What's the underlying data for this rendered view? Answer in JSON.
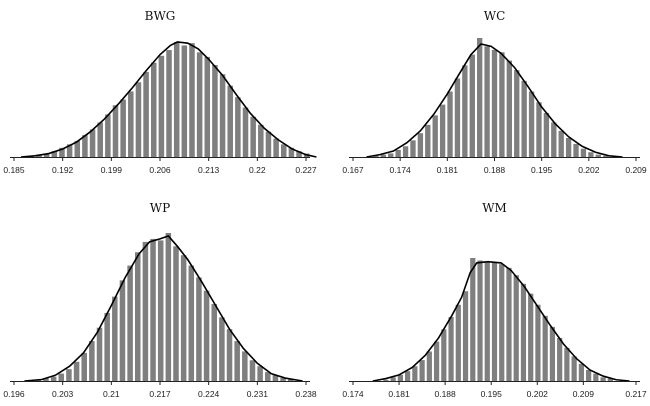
{
  "chart_data": [
    {
      "type": "bar",
      "title": "BWG",
      "xlim": [
        0.185,
        0.227
      ],
      "xticks": [
        "0.185",
        "0.192",
        "0.199",
        "0.206",
        "0.213",
        "0.22",
        "0.227"
      ],
      "bin_width": 0.0011,
      "bins": [
        {
          "x": 0.1875,
          "y": 1
        },
        {
          "x": 0.1886,
          "y": 2
        },
        {
          "x": 0.1897,
          "y": 3
        },
        {
          "x": 0.1908,
          "y": 5
        },
        {
          "x": 0.1919,
          "y": 8
        },
        {
          "x": 0.193,
          "y": 11
        },
        {
          "x": 0.1941,
          "y": 14
        },
        {
          "x": 0.1952,
          "y": 19
        },
        {
          "x": 0.1963,
          "y": 24
        },
        {
          "x": 0.1974,
          "y": 30
        },
        {
          "x": 0.1985,
          "y": 37
        },
        {
          "x": 0.1996,
          "y": 45
        },
        {
          "x": 0.2007,
          "y": 50
        },
        {
          "x": 0.2018,
          "y": 57
        },
        {
          "x": 0.2029,
          "y": 65
        },
        {
          "x": 0.204,
          "y": 74
        },
        {
          "x": 0.2051,
          "y": 82
        },
        {
          "x": 0.2062,
          "y": 88
        },
        {
          "x": 0.2073,
          "y": 93
        },
        {
          "x": 0.2084,
          "y": 100
        },
        {
          "x": 0.2095,
          "y": 97
        },
        {
          "x": 0.2106,
          "y": 99
        },
        {
          "x": 0.2117,
          "y": 91
        },
        {
          "x": 0.2128,
          "y": 87
        },
        {
          "x": 0.2139,
          "y": 80
        },
        {
          "x": 0.215,
          "y": 72
        },
        {
          "x": 0.2161,
          "y": 62
        },
        {
          "x": 0.2172,
          "y": 52
        },
        {
          "x": 0.2183,
          "y": 43
        },
        {
          "x": 0.2194,
          "y": 35
        },
        {
          "x": 0.2205,
          "y": 28
        },
        {
          "x": 0.2216,
          "y": 22
        },
        {
          "x": 0.2227,
          "y": 16
        },
        {
          "x": 0.2238,
          "y": 11
        },
        {
          "x": 0.2249,
          "y": 8
        },
        {
          "x": 0.226,
          "y": 5
        },
        {
          "x": 0.2271,
          "y": 3
        }
      ],
      "curve": [
        {
          "x": 0.186,
          "y": 0
        },
        {
          "x": 0.188,
          "y": 1
        },
        {
          "x": 0.19,
          "y": 3
        },
        {
          "x": 0.192,
          "y": 7
        },
        {
          "x": 0.194,
          "y": 13
        },
        {
          "x": 0.196,
          "y": 22
        },
        {
          "x": 0.198,
          "y": 33
        },
        {
          "x": 0.2,
          "y": 46
        },
        {
          "x": 0.202,
          "y": 60
        },
        {
          "x": 0.204,
          "y": 75
        },
        {
          "x": 0.206,
          "y": 89
        },
        {
          "x": 0.2075,
          "y": 97
        },
        {
          "x": 0.2085,
          "y": 100
        },
        {
          "x": 0.21,
          "y": 99
        },
        {
          "x": 0.2115,
          "y": 94
        },
        {
          "x": 0.213,
          "y": 85
        },
        {
          "x": 0.215,
          "y": 71
        },
        {
          "x": 0.217,
          "y": 54
        },
        {
          "x": 0.219,
          "y": 38
        },
        {
          "x": 0.221,
          "y": 25
        },
        {
          "x": 0.223,
          "y": 15
        },
        {
          "x": 0.225,
          "y": 7
        },
        {
          "x": 0.227,
          "y": 2
        },
        {
          "x": 0.2285,
          "y": 0
        }
      ]
    },
    {
      "type": "bar",
      "title": "WC",
      "xlim": [
        0.167,
        0.209
      ],
      "xticks": [
        "0.167",
        "0.174",
        "0.181",
        "0.188",
        "0.195",
        "0.202",
        "0.209"
      ],
      "bin_width": 0.0011,
      "bins": [
        {
          "x": 0.1704,
          "y": 1
        },
        {
          "x": 0.1715,
          "y": 2
        },
        {
          "x": 0.1726,
          "y": 3
        },
        {
          "x": 0.1737,
          "y": 6
        },
        {
          "x": 0.1748,
          "y": 9
        },
        {
          "x": 0.1759,
          "y": 14
        },
        {
          "x": 0.177,
          "y": 20
        },
        {
          "x": 0.1781,
          "y": 27
        },
        {
          "x": 0.1792,
          "y": 35
        },
        {
          "x": 0.1803,
          "y": 44
        },
        {
          "x": 0.1814,
          "y": 55
        },
        {
          "x": 0.1825,
          "y": 66
        },
        {
          "x": 0.1836,
          "y": 77
        },
        {
          "x": 0.1847,
          "y": 86
        },
        {
          "x": 0.1858,
          "y": 100
        },
        {
          "x": 0.1869,
          "y": 93
        },
        {
          "x": 0.188,
          "y": 90
        },
        {
          "x": 0.1891,
          "y": 88
        },
        {
          "x": 0.1902,
          "y": 81
        },
        {
          "x": 0.1913,
          "y": 73
        },
        {
          "x": 0.1924,
          "y": 64
        },
        {
          "x": 0.1935,
          "y": 55
        },
        {
          "x": 0.1946,
          "y": 46
        },
        {
          "x": 0.1957,
          "y": 37
        },
        {
          "x": 0.1968,
          "y": 29
        },
        {
          "x": 0.1979,
          "y": 22
        },
        {
          "x": 0.199,
          "y": 16
        },
        {
          "x": 0.2001,
          "y": 11
        },
        {
          "x": 0.2012,
          "y": 7
        },
        {
          "x": 0.2023,
          "y": 4
        },
        {
          "x": 0.2034,
          "y": 2
        },
        {
          "x": 0.2045,
          "y": 1
        }
      ],
      "curve": [
        {
          "x": 0.169,
          "y": 0
        },
        {
          "x": 0.171,
          "y": 2
        },
        {
          "x": 0.173,
          "y": 5
        },
        {
          "x": 0.175,
          "y": 12
        },
        {
          "x": 0.177,
          "y": 22
        },
        {
          "x": 0.179,
          "y": 36
        },
        {
          "x": 0.181,
          "y": 53
        },
        {
          "x": 0.183,
          "y": 72
        },
        {
          "x": 0.1845,
          "y": 86
        },
        {
          "x": 0.186,
          "y": 95
        },
        {
          "x": 0.1875,
          "y": 93
        },
        {
          "x": 0.189,
          "y": 87
        },
        {
          "x": 0.191,
          "y": 75
        },
        {
          "x": 0.193,
          "y": 59
        },
        {
          "x": 0.195,
          "y": 42
        },
        {
          "x": 0.197,
          "y": 28
        },
        {
          "x": 0.199,
          "y": 17
        },
        {
          "x": 0.201,
          "y": 9
        },
        {
          "x": 0.203,
          "y": 4
        },
        {
          "x": 0.205,
          "y": 1
        },
        {
          "x": 0.207,
          "y": 0
        }
      ]
    },
    {
      "type": "bar",
      "title": "WP",
      "xlim": [
        0.196,
        0.238
      ],
      "xticks": [
        "0.196",
        "0.203",
        "0.21",
        "0.217",
        "0.224",
        "0.231",
        "0.238"
      ],
      "bin_width": 0.0011,
      "bins": [
        {
          "x": 0.1995,
          "y": 1
        },
        {
          "x": 0.2006,
          "y": 2
        },
        {
          "x": 0.2017,
          "y": 3
        },
        {
          "x": 0.2028,
          "y": 5
        },
        {
          "x": 0.2039,
          "y": 8
        },
        {
          "x": 0.205,
          "y": 13
        },
        {
          "x": 0.2061,
          "y": 19
        },
        {
          "x": 0.2072,
          "y": 27
        },
        {
          "x": 0.2083,
          "y": 36
        },
        {
          "x": 0.2094,
          "y": 46
        },
        {
          "x": 0.2105,
          "y": 57
        },
        {
          "x": 0.2116,
          "y": 68
        },
        {
          "x": 0.2127,
          "y": 78
        },
        {
          "x": 0.2138,
          "y": 87
        },
        {
          "x": 0.2149,
          "y": 94
        },
        {
          "x": 0.216,
          "y": 96
        },
        {
          "x": 0.2171,
          "y": 95
        },
        {
          "x": 0.2182,
          "y": 100
        },
        {
          "x": 0.2193,
          "y": 91
        },
        {
          "x": 0.2204,
          "y": 85
        },
        {
          "x": 0.2215,
          "y": 78
        },
        {
          "x": 0.2226,
          "y": 70
        },
        {
          "x": 0.2237,
          "y": 61
        },
        {
          "x": 0.2248,
          "y": 52
        },
        {
          "x": 0.2259,
          "y": 43
        },
        {
          "x": 0.227,
          "y": 35
        },
        {
          "x": 0.2281,
          "y": 27
        },
        {
          "x": 0.2292,
          "y": 20
        },
        {
          "x": 0.2303,
          "y": 14
        },
        {
          "x": 0.2314,
          "y": 10
        },
        {
          "x": 0.2325,
          "y": 6
        },
        {
          "x": 0.2336,
          "y": 4
        },
        {
          "x": 0.2347,
          "y": 2
        },
        {
          "x": 0.2358,
          "y": 1
        }
      ],
      "curve": [
        {
          "x": 0.1975,
          "y": 0
        },
        {
          "x": 0.2,
          "y": 1
        },
        {
          "x": 0.202,
          "y": 4
        },
        {
          "x": 0.204,
          "y": 10
        },
        {
          "x": 0.206,
          "y": 19
        },
        {
          "x": 0.208,
          "y": 33
        },
        {
          "x": 0.21,
          "y": 51
        },
        {
          "x": 0.212,
          "y": 70
        },
        {
          "x": 0.214,
          "y": 86
        },
        {
          "x": 0.2155,
          "y": 94
        },
        {
          "x": 0.217,
          "y": 96
        },
        {
          "x": 0.2182,
          "y": 98
        },
        {
          "x": 0.2195,
          "y": 91
        },
        {
          "x": 0.221,
          "y": 82
        },
        {
          "x": 0.223,
          "y": 67
        },
        {
          "x": 0.225,
          "y": 51
        },
        {
          "x": 0.227,
          "y": 35
        },
        {
          "x": 0.229,
          "y": 22
        },
        {
          "x": 0.231,
          "y": 12
        },
        {
          "x": 0.233,
          "y": 5
        },
        {
          "x": 0.235,
          "y": 2
        },
        {
          "x": 0.2375,
          "y": 0
        }
      ]
    },
    {
      "type": "bar",
      "title": "WM",
      "xlim": [
        0.174,
        0.217
      ],
      "xticks": [
        "0.174",
        "0.181",
        "0.188",
        "0.195",
        "0.202",
        "0.209",
        "0.217"
      ],
      "bin_width": 0.0011,
      "bins": [
        {
          "x": 0.179,
          "y": 1
        },
        {
          "x": 0.1801,
          "y": 3
        },
        {
          "x": 0.1812,
          "y": 5
        },
        {
          "x": 0.1823,
          "y": 8
        },
        {
          "x": 0.1834,
          "y": 12
        },
        {
          "x": 0.1845,
          "y": 17
        },
        {
          "x": 0.1856,
          "y": 24
        },
        {
          "x": 0.1867,
          "y": 32
        },
        {
          "x": 0.1878,
          "y": 42
        },
        {
          "x": 0.1889,
          "y": 52
        },
        {
          "x": 0.19,
          "y": 62
        },
        {
          "x": 0.1911,
          "y": 73
        },
        {
          "x": 0.1922,
          "y": 100
        },
        {
          "x": 0.1933,
          "y": 98
        },
        {
          "x": 0.1944,
          "y": 97
        },
        {
          "x": 0.1955,
          "y": 96
        },
        {
          "x": 0.1966,
          "y": 95
        },
        {
          "x": 0.1977,
          "y": 92
        },
        {
          "x": 0.1988,
          "y": 86
        },
        {
          "x": 0.1999,
          "y": 79
        },
        {
          "x": 0.201,
          "y": 71
        },
        {
          "x": 0.2021,
          "y": 62
        },
        {
          "x": 0.2032,
          "y": 53
        },
        {
          "x": 0.2043,
          "y": 44
        },
        {
          "x": 0.2054,
          "y": 35
        },
        {
          "x": 0.2065,
          "y": 27
        },
        {
          "x": 0.2076,
          "y": 20
        },
        {
          "x": 0.2087,
          "y": 14
        },
        {
          "x": 0.2098,
          "y": 9
        },
        {
          "x": 0.2109,
          "y": 6
        },
        {
          "x": 0.212,
          "y": 3
        },
        {
          "x": 0.2131,
          "y": 2
        }
      ],
      "curve": [
        {
          "x": 0.177,
          "y": 0
        },
        {
          "x": 0.179,
          "y": 2
        },
        {
          "x": 0.181,
          "y": 5
        },
        {
          "x": 0.183,
          "y": 11
        },
        {
          "x": 0.185,
          "y": 21
        },
        {
          "x": 0.187,
          "y": 35
        },
        {
          "x": 0.189,
          "y": 53
        },
        {
          "x": 0.1905,
          "y": 68
        },
        {
          "x": 0.1918,
          "y": 88
        },
        {
          "x": 0.1928,
          "y": 96
        },
        {
          "x": 0.1945,
          "y": 97
        },
        {
          "x": 0.1965,
          "y": 96
        },
        {
          "x": 0.198,
          "y": 90
        },
        {
          "x": 0.2,
          "y": 77
        },
        {
          "x": 0.202,
          "y": 61
        },
        {
          "x": 0.204,
          "y": 45
        },
        {
          "x": 0.206,
          "y": 30
        },
        {
          "x": 0.208,
          "y": 18
        },
        {
          "x": 0.21,
          "y": 9
        },
        {
          "x": 0.212,
          "y": 4
        },
        {
          "x": 0.214,
          "y": 1
        },
        {
          "x": 0.216,
          "y": 0
        }
      ]
    }
  ]
}
